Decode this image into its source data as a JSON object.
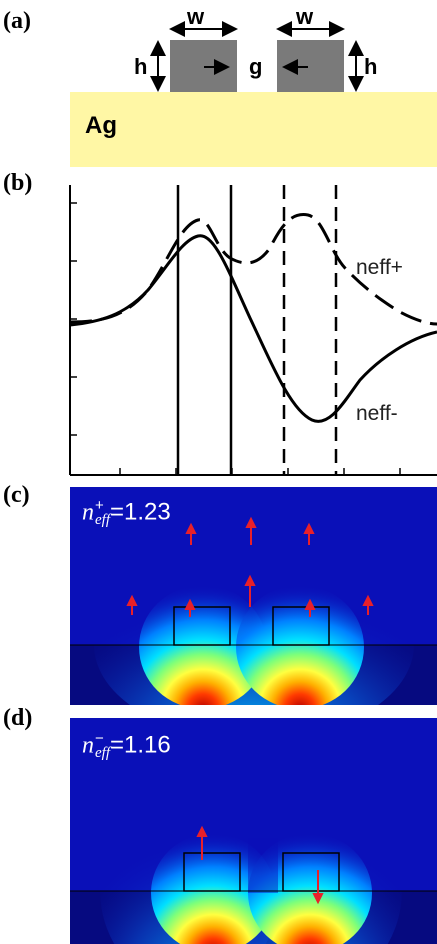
{
  "panels": {
    "a": {
      "label": "(a)"
    },
    "b": {
      "label": "(b)"
    },
    "c": {
      "label": "(c)"
    },
    "d": {
      "label": "(d)"
    }
  },
  "schematic": {
    "substrate_label": "Ag",
    "width_label_left": "w",
    "width_label_right": "w",
    "height_label_left": "h",
    "height_label_right": "h",
    "gap_label": "g",
    "substrate_color": "#fff7a5",
    "waveguide_color": "#7a7a7a"
  },
  "chart_data": {
    "type": "line",
    "series": [
      {
        "name": "neff+",
        "style": "dashed"
      },
      {
        "name": "neff-",
        "style": "solid"
      }
    ],
    "vertical_markers": [
      {
        "style": "solid"
      },
      {
        "style": "solid"
      },
      {
        "style": "dashed"
      },
      {
        "style": "dashed"
      }
    ],
    "grid": false
  },
  "field_maps": {
    "c": {
      "n_symbol": "n",
      "superscript": "+",
      "subscript": "eff",
      "value": "=1.23"
    },
    "d": {
      "n_symbol": "n",
      "superscript": "−",
      "subscript": "eff",
      "value": "=1.16"
    },
    "colormap": "jet",
    "arrow_color": "#e8202a"
  }
}
